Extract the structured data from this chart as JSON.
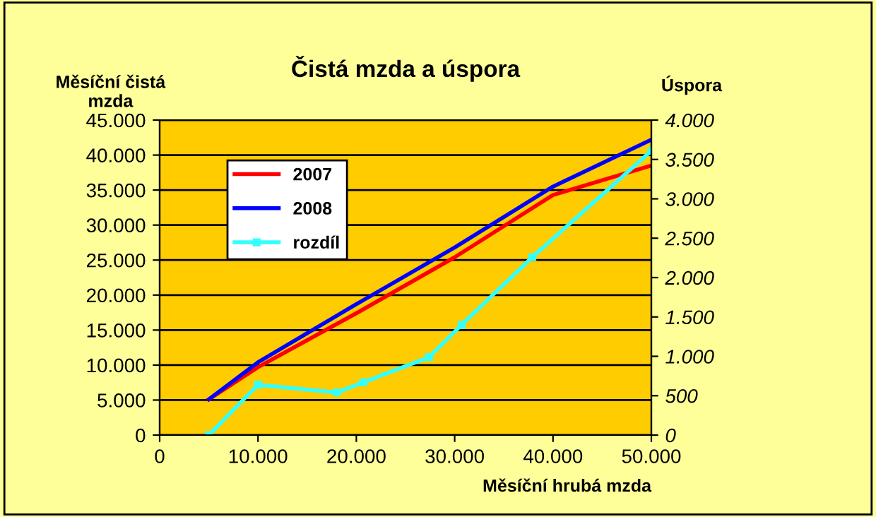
{
  "chart_data": {
    "type": "line",
    "title": "Čistá mzda a úspora",
    "xlabel": "Měsíční hrubá mzda",
    "ylabel": "Měsíční čistá\nmzda",
    "y2label": "Úspora",
    "xlim": [
      0,
      50000
    ],
    "xticks": [
      {
        "value": 0,
        "label": "0"
      },
      {
        "value": 10000,
        "label": "10.000"
      },
      {
        "value": 20000,
        "label": "20.000"
      },
      {
        "value": 30000,
        "label": "30.000"
      },
      {
        "value": 40000,
        "label": "40.000"
      },
      {
        "value": 50000,
        "label": "50.000"
      }
    ],
    "ylim": [
      0,
      45000
    ],
    "yticks": [
      {
        "value": 0,
        "label": "0"
      },
      {
        "value": 5000,
        "label": "5.000"
      },
      {
        "value": 10000,
        "label": "10.000"
      },
      {
        "value": 15000,
        "label": "15.000"
      },
      {
        "value": 20000,
        "label": "20.000"
      },
      {
        "value": 25000,
        "label": "25.000"
      },
      {
        "value": 30000,
        "label": "30.000"
      },
      {
        "value": 35000,
        "label": "35.000"
      },
      {
        "value": 40000,
        "label": "40.000"
      },
      {
        "value": 45000,
        "label": "45.000"
      }
    ],
    "y2lim": [
      0,
      4000
    ],
    "y2ticks": [
      {
        "value": 0,
        "label": "0"
      },
      {
        "value": 500,
        "label": "500"
      },
      {
        "value": 1000,
        "label": "1.000"
      },
      {
        "value": 1500,
        "label": "1.500"
      },
      {
        "value": 2000,
        "label": "2.000"
      },
      {
        "value": 2500,
        "label": "2.500"
      },
      {
        "value": 3000,
        "label": "3.000"
      },
      {
        "value": 3500,
        "label": "3.500"
      },
      {
        "value": 4000,
        "label": "4.000"
      }
    ],
    "grid": "y",
    "legend": "top left",
    "series": [
      {
        "name": "2007",
        "color": "#ff0000",
        "x": [
          5000,
          10000,
          20000,
          30000,
          40000,
          50000
        ],
        "values": [
          5100,
          9700,
          17400,
          25400,
          34300,
          38500
        ]
      },
      {
        "name": "2008",
        "color": "#0000ff",
        "x": [
          5000,
          10000,
          20000,
          30000,
          40000,
          50000
        ],
        "values": [
          5100,
          10400,
          18700,
          26800,
          35500,
          42200
        ]
      },
      {
        "name": "rozdíl",
        "color": "#33ffff",
        "axis": "y2",
        "marker": "square",
        "x": [
          5000,
          10000,
          18000,
          20700,
          27400,
          30700,
          37900,
          50000
        ],
        "values": [
          0,
          640,
          540,
          670,
          990,
          1400,
          2260,
          3610
        ]
      }
    ]
  }
}
